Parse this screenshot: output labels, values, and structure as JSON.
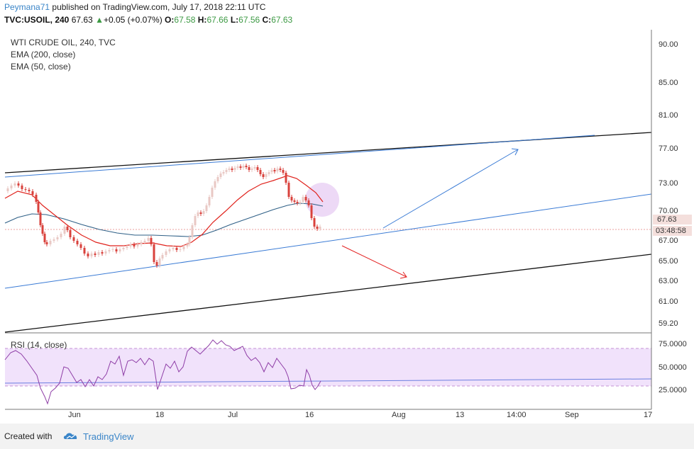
{
  "header": {
    "user": "Peymana71",
    "published_text": "published on TradingView.com, July 17, 2018 22:11 UTC",
    "symbol": "TVC:USOIL, 240",
    "last": "67.63",
    "change_arrow": "▲",
    "change": "+0.05 (+0.07%)",
    "o_label": "O:",
    "o_value": "67.58",
    "h_label": "H:",
    "h_value": "67.66",
    "l_label": "L:",
    "l_value": "67.56",
    "c_label": "C:",
    "c_value": "67.63"
  },
  "legend": {
    "title": "WTI CRUDE OIL, 240, TVC",
    "ema200": "EMA (200, close)",
    "ema50": "EMA (50, close)"
  },
  "rsi": {
    "label": "RSI (14, close)",
    "ticks": [
      "75.0000",
      "50.0000",
      "25.0000"
    ]
  },
  "price_axis": {
    "ticks": [
      "90.00",
      "85.00",
      "81.00",
      "77.00",
      "73.00",
      "70.00",
      "67.00",
      "65.00",
      "63.00",
      "61.00",
      "59.20"
    ],
    "last_price_tag": "67.63",
    "countdown_tag": "03:48:58"
  },
  "time_axis": {
    "ticks": [
      "Jun",
      "18",
      "Jul",
      "16",
      "Aug",
      "13",
      "14:00",
      "Sep",
      "17"
    ]
  },
  "footer": {
    "created_with": "Created with",
    "brand": "TradingView"
  },
  "colors": {
    "up_candle": "#e9c8c4",
    "down_candle": "#d9423c",
    "ema200": "#2e5f86",
    "ema50": "#e0221c",
    "trendline_blue": "#3a7bd5",
    "trendline_black": "#111111",
    "arrow_down": "#e32222",
    "rsi_fill": "#f1e2fb",
    "rsi_line": "#8e3da6",
    "rsi_mid": "#6b7fe0",
    "highlight_circle": "#e7ccf3"
  }
}
